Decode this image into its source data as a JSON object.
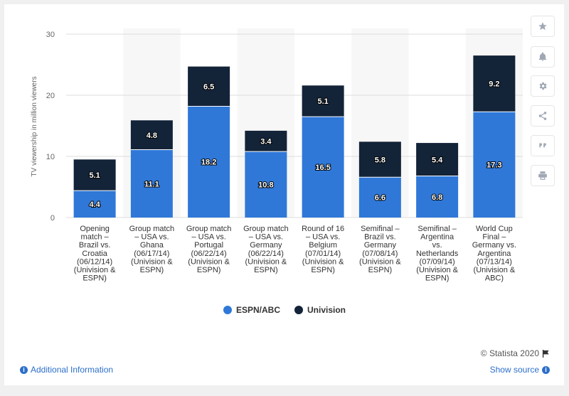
{
  "chart_data": {
    "type": "bar",
    "stacked": true,
    "categories": [
      "Opening match – Brazil vs. Croatia (06/12/14) (Univision & ESPN)",
      "Group match – USA vs. Ghana (06/17/14) (Univision & ESPN)",
      "Group match – USA vs. Portugal (06/22/14) (Univision & ESPN)",
      "Group match – USA vs. Germany (06/22/14) (Univision & ESPN)",
      "Round of 16 – USA vs. Belgium (07/01/14) (Univision & ESPN)",
      "Semifinal – Brazil vs. Germany (07/08/14) (Univision & ESPN)",
      "Semifinal – Argentina vs. Netherlands (07/09/14) (Univision & ESPN)",
      "World Cup Final – Germany vs. Argentina (07/13/14) (Univision & ABC)"
    ],
    "category_lines": [
      [
        "Opening",
        "match –",
        "Brazil vs.",
        "Croatia",
        "(06/12/14)",
        "(Univision &",
        "ESPN)"
      ],
      [
        "Group match",
        "– USA vs.",
        "Ghana",
        "(06/17/14)",
        "(Univision &",
        "ESPN)"
      ],
      [
        "Group match",
        "– USA vs.",
        "Portugal",
        "(06/22/14)",
        "(Univision &",
        "ESPN)"
      ],
      [
        "Group match",
        "– USA vs.",
        "Germany",
        "(06/22/14)",
        "(Univision &",
        "ESPN)"
      ],
      [
        "Round of 16",
        "– USA vs.",
        "Belgium",
        "(07/01/14)",
        "(Univision &",
        "ESPN)"
      ],
      [
        "Semifinal –",
        "Brazil vs.",
        "Germany",
        "(07/08/14)",
        "(Univision &",
        "ESPN)"
      ],
      [
        "Semifinal –",
        "Argentina",
        "vs.",
        "Netherlands",
        "(07/09/14)",
        "(Univision &",
        "ESPN)"
      ],
      [
        "World Cup",
        "Final –",
        "Germany vs.",
        "Argentina",
        "(07/13/14)",
        "(Univision &",
        "ABC)"
      ]
    ],
    "series": [
      {
        "name": "ESPN/ABC",
        "color": "#2f78d8",
        "values": [
          4.4,
          11.1,
          18.2,
          10.8,
          16.5,
          6.6,
          6.8,
          17.3
        ]
      },
      {
        "name": "Univision",
        "color": "#132338",
        "values": [
          5.1,
          4.8,
          6.5,
          3.4,
          5.1,
          5.8,
          5.4,
          9.2
        ]
      }
    ],
    "ylabel": "TV viewership in million viewers",
    "xlabel": "",
    "ylim": [
      0,
      30
    ],
    "yticks": [
      0,
      10,
      20,
      30
    ],
    "grid": true,
    "legend_position": "bottom-center"
  },
  "legend": {
    "espn_label": "ESPN/ABC",
    "univision_label": "Univision"
  },
  "footer": {
    "credit": "© Statista 2020",
    "additional_info": "Additional Information",
    "show_source": "Show source"
  },
  "sidebar": {
    "icons": [
      "star-icon",
      "bell-icon",
      "gear-icon",
      "share-icon",
      "quote-icon",
      "print-icon"
    ]
  }
}
